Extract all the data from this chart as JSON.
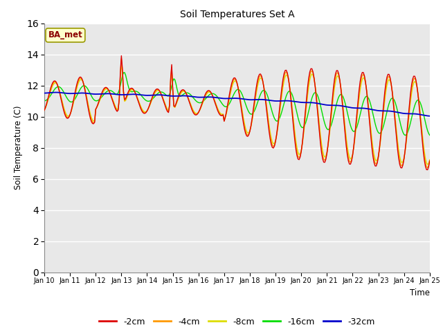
{
  "title": "Soil Temperatures Set A",
  "xlabel": "Time",
  "ylabel": "Soil Temperature (C)",
  "ylim": [
    0,
    16
  ],
  "yticks": [
    0,
    2,
    4,
    6,
    8,
    10,
    12,
    14,
    16
  ],
  "annotation": "BA_met",
  "bg_color": "#e8e8e8",
  "fig_bg": "#ffffff",
  "line_colors": {
    "-2cm": "#dd0000",
    "-4cm": "#ff9900",
    "-8cm": "#dddd00",
    "-16cm": "#00dd00",
    "-32cm": "#0000cc"
  },
  "legend_labels": [
    "-2cm",
    "-4cm",
    "-8cm",
    "-16cm",
    "-32cm"
  ],
  "xtick_labels": [
    "Jan 10",
    "Jan 11",
    "Jan 12",
    "Jan 13",
    "Jan 14",
    "Jan 15",
    "Jan 16",
    "Jan 17",
    "Jan 18",
    "Jan 19",
    "Jan 20",
    "Jan 21",
    "Jan 22",
    "Jan 23",
    "Jan 24",
    "Jan 25"
  ]
}
